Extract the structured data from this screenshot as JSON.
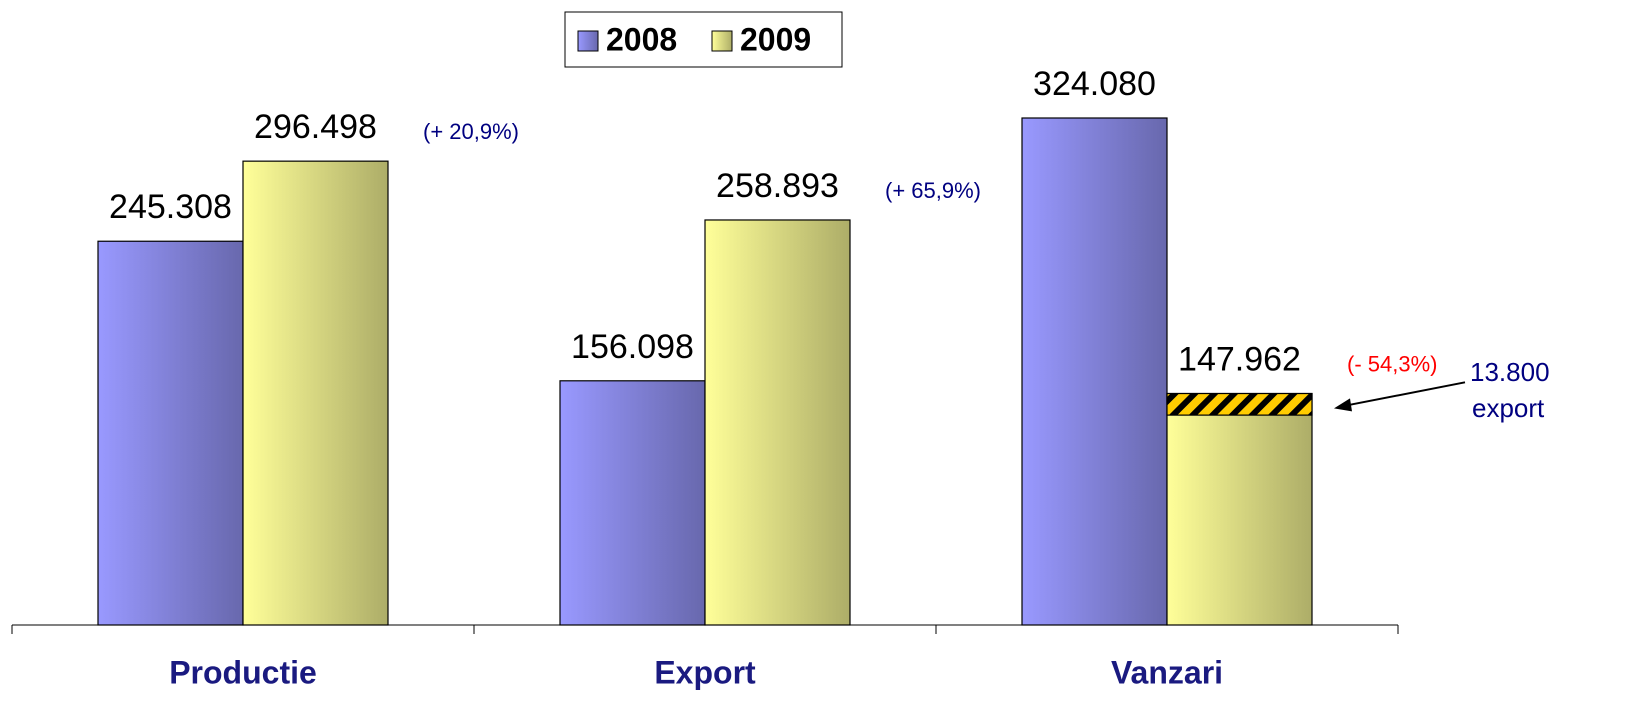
{
  "chart_data": {
    "type": "bar",
    "categories": [
      "Productie",
      "Export",
      "Vanzari"
    ],
    "series": [
      {
        "name": "2008",
        "color": "#9999ff",
        "values": [
          245308,
          156098,
          324080
        ],
        "value_labels": [
          "245.308",
          "156.098",
          "324.080"
        ]
      },
      {
        "name": "2009",
        "color": "#ffff99",
        "values": [
          296498,
          258893,
          147962
        ],
        "value_labels": [
          "296.498",
          "258.893",
          "147.962"
        ]
      }
    ],
    "change_labels": [
      "(+ 20,9%)",
      "(+ 65,9%)",
      "(- 54,3%)"
    ],
    "change_colors": [
      "#000080",
      "#000080",
      "#ff0000"
    ],
    "export_segment": {
      "value": 13800,
      "value_label": "13.800",
      "label": "export",
      "color": "#ffcc00"
    },
    "legend": "top"
  }
}
